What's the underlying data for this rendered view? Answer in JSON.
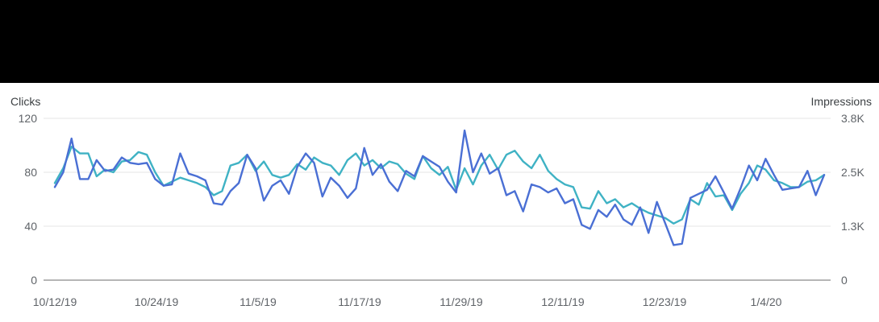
{
  "colors": {
    "clicks": "#4a6fd4",
    "impressions": "#3fb2c4",
    "grid": "#e6e6e6",
    "axis": "#9e9e9e"
  },
  "chart_data": {
    "type": "line",
    "left_axis": {
      "label": "Clicks",
      "ticks": [
        "0",
        "40",
        "80",
        "120"
      ],
      "range": [
        0,
        120
      ]
    },
    "right_axis": {
      "label": "Impressions",
      "ticks": [
        "0",
        "1.3K",
        "2.5K",
        "3.8K"
      ],
      "range": [
        0,
        3800
      ]
    },
    "x_ticks": [
      "10/12/19",
      "10/24/19",
      "11/5/19",
      "11/17/19",
      "11/29/19",
      "12/11/19",
      "12/23/19",
      "1/4/20"
    ],
    "x_start": "10/12/19",
    "grid": true,
    "series": [
      {
        "name": "Clicks",
        "axis": "left",
        "values": [
          69,
          80,
          105,
          75,
          75,
          89,
          81,
          82,
          91,
          87,
          86,
          87,
          75,
          70,
          71,
          94,
          79,
          77,
          74,
          57,
          56,
          66,
          72,
          93,
          83,
          59,
          70,
          74,
          64,
          84,
          94,
          87,
          62,
          76,
          70,
          61,
          68,
          98,
          78,
          86,
          73,
          66,
          81,
          77,
          92,
          88,
          84,
          73,
          65,
          111,
          80,
          94,
          79,
          83,
          63,
          66,
          51,
          71,
          69,
          65,
          68,
          57,
          60,
          41,
          38,
          52,
          47,
          56,
          45,
          41,
          54,
          35,
          58,
          42,
          26,
          27,
          61,
          64,
          67,
          77,
          65,
          53,
          68,
          85,
          74,
          90,
          78,
          67,
          68,
          69,
          81,
          63,
          78
        ]
      },
      {
        "name": "Impressions",
        "axis": "left",
        "values": [
          72,
          83,
          99,
          94,
          94,
          77,
          82,
          80,
          88,
          89,
          95,
          93,
          80,
          70,
          73,
          76,
          74,
          72,
          69,
          63,
          66,
          85,
          87,
          93,
          81,
          88,
          78,
          76,
          78,
          86,
          82,
          91,
          87,
          85,
          78,
          89,
          94,
          85,
          89,
          83,
          88,
          86,
          79,
          75,
          92,
          83,
          78,
          84,
          67,
          83,
          71,
          85,
          93,
          82,
          93,
          96,
          88,
          83,
          93,
          81,
          75,
          71,
          69,
          54,
          53,
          66,
          57,
          60,
          54,
          57,
          53,
          50,
          48,
          46,
          42,
          45,
          60,
          56,
          72,
          62,
          63,
          52,
          64,
          72,
          85,
          82,
          74,
          72,
          69,
          69,
          73,
          74,
          78
        ]
      }
    ]
  }
}
